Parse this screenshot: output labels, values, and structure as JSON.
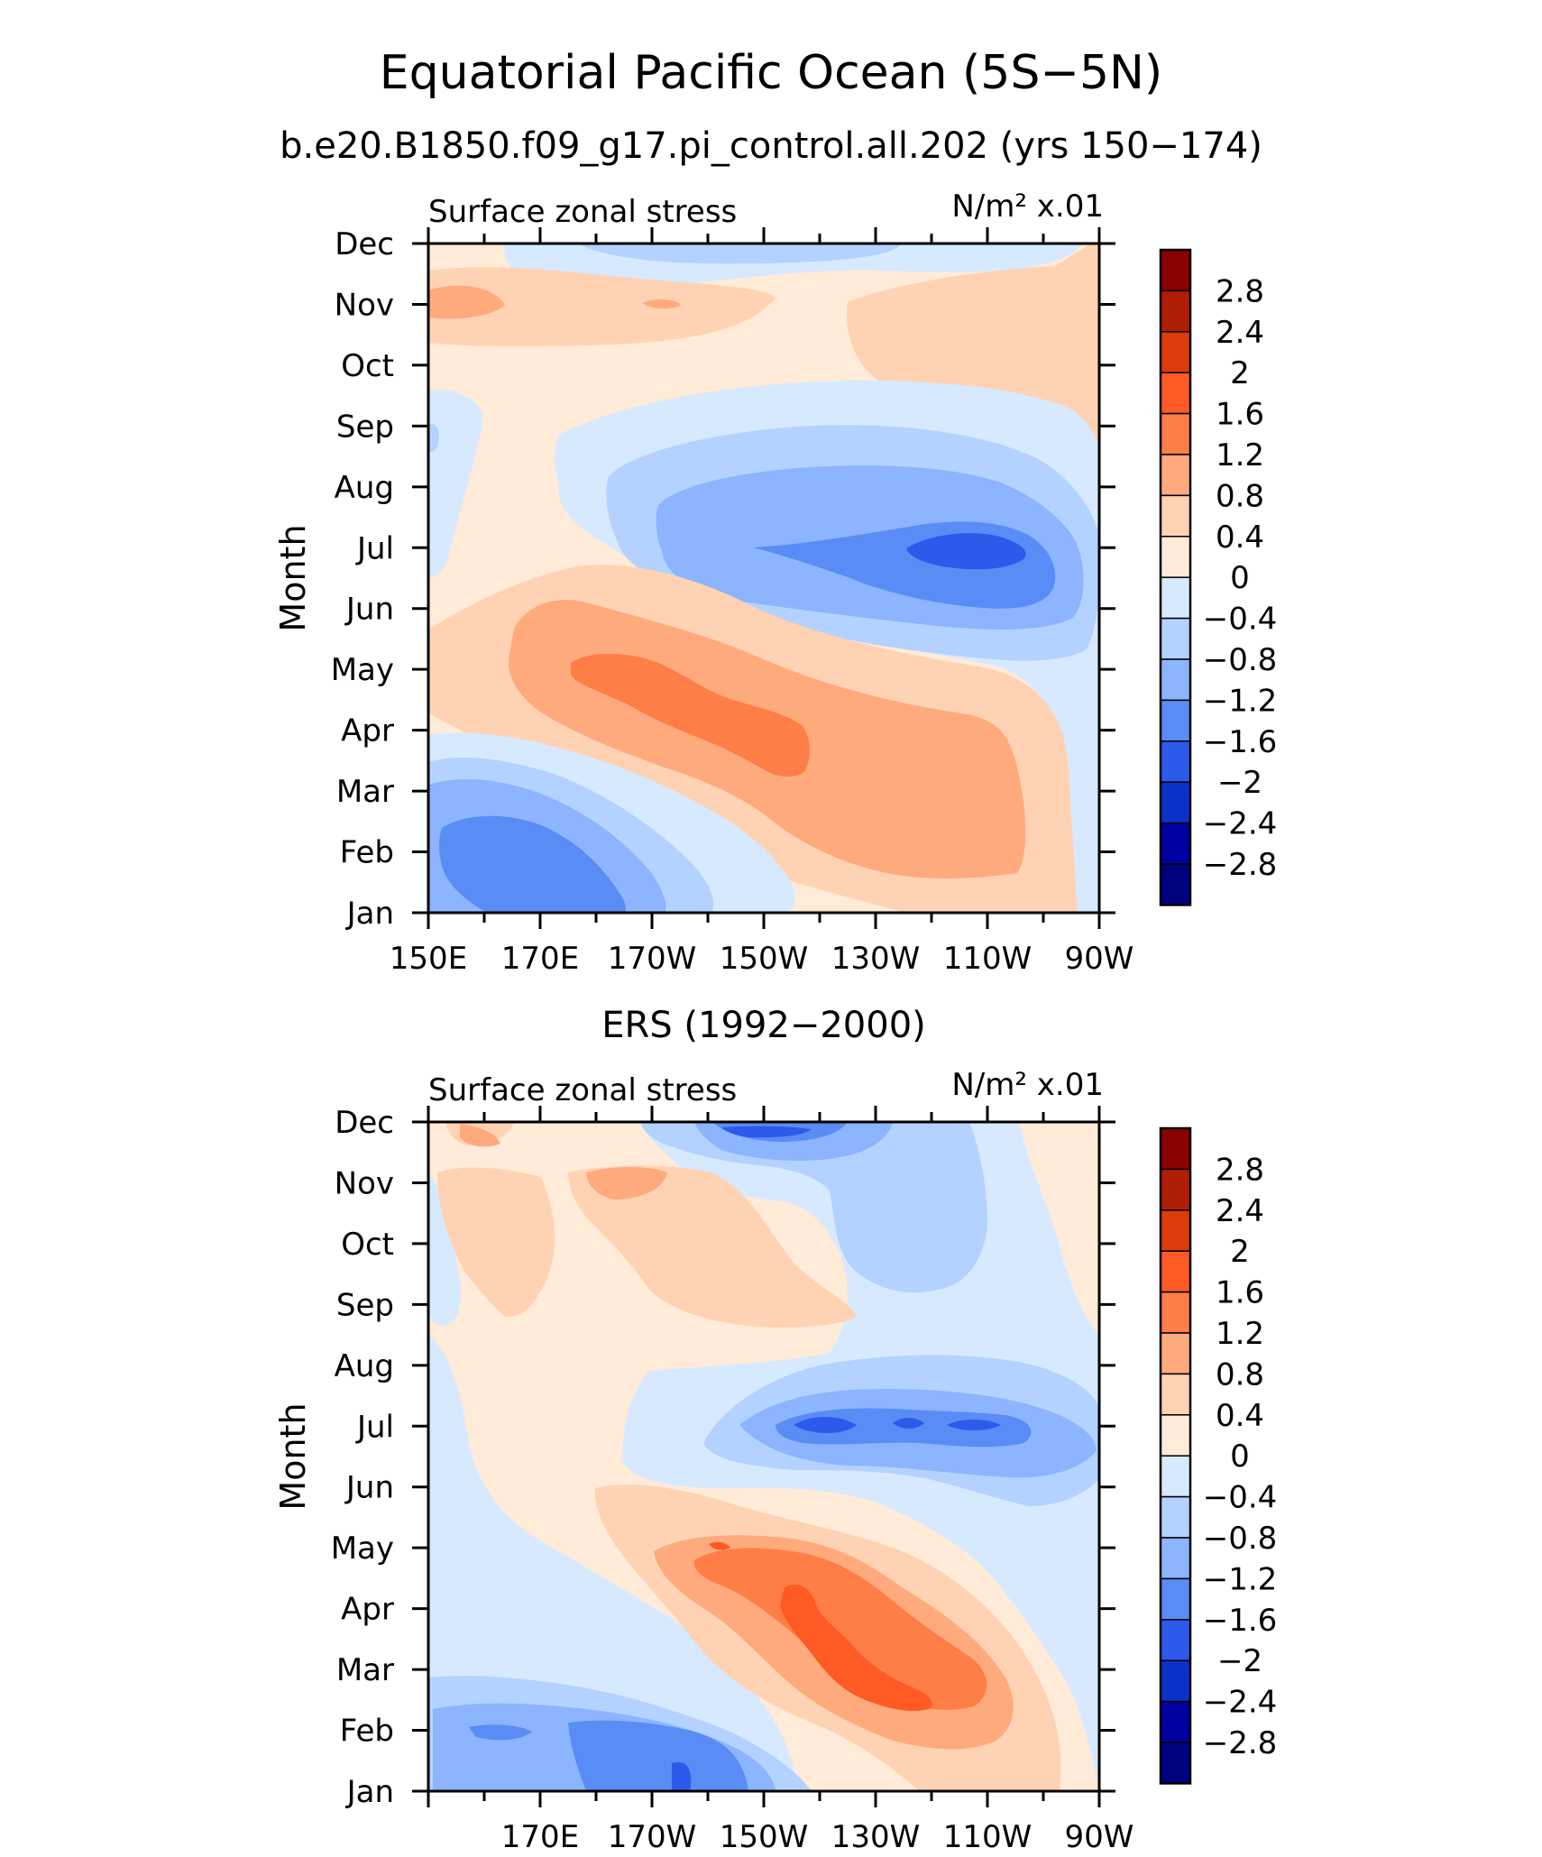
{
  "figure": {
    "title": "Equatorial Pacific Ocean (5S−5N)",
    "subtitle": "b.e20.B1850.f09_g17.pi_control.all.202 (yrs 150−174)",
    "second_title": "ERS (1992−2000)"
  },
  "colorbar": {
    "levels": [
      "2.8",
      "2.4",
      "2",
      "1.6",
      "1.2",
      "0.8",
      "0.4",
      "0",
      "−0.4",
      "−0.8",
      "−1.2",
      "−1.6",
      "−2",
      "−2.4",
      "−2.8"
    ],
    "colors": [
      "#8b0000",
      "#b01e05",
      "#dc3c0a",
      "#ff5a23",
      "#ff7d46",
      "#ffaa7d",
      "#ffd2b4",
      "#ffebd7",
      "#d7e9ff",
      "#b4d2ff",
      "#8cb4ff",
      "#5a8cf5",
      "#2d5aeb",
      "#0a32c8",
      "#0000a0",
      "#00007d"
    ]
  },
  "chart_data": [
    {
      "type": "heatmap",
      "panel": "model",
      "left_label": "Surface zonal stress",
      "right_label": "N/m² x.01",
      "ylabel": "Month",
      "xlabel": "",
      "y_ticks": [
        "Jan",
        "Feb",
        "Mar",
        "Apr",
        "May",
        "Jun",
        "Jul",
        "Aug",
        "Sep",
        "Oct",
        "Nov",
        "Dec"
      ],
      "x_ticks": [
        "150E",
        "170E",
        "170W",
        "150W",
        "130W",
        "110W",
        "90W"
      ],
      "x_range_deg_east": [
        150,
        270
      ],
      "y_range_month": [
        1,
        12
      ],
      "contour_levels": [
        -2.8,
        -2.4,
        -2,
        -1.6,
        -1.2,
        -0.8,
        -0.4,
        0,
        0.4,
        0.8,
        1.2,
        1.6,
        2,
        2.4,
        2.8
      ],
      "features": [
        {
          "name": "westerly anomaly Nov",
          "lon": 158,
          "month": 10.9,
          "value": 1.0
        },
        {
          "name": "easterly anomaly Jul",
          "lon": 250,
          "month": 7.0,
          "value": -2.2
        },
        {
          "name": "westerly anomaly Apr-May",
          "lon": 195,
          "month": 4.4,
          "value": 1.4
        },
        {
          "name": "easterly anomaly Feb",
          "lon": 162,
          "month": 1.8,
          "value": -1.7
        }
      ]
    },
    {
      "type": "heatmap",
      "panel": "ERS",
      "left_label": "Surface zonal stress",
      "right_label": "N/m² x.01",
      "ylabel": "Month",
      "xlabel": "",
      "y_ticks": [
        "Jan",
        "Feb",
        "Mar",
        "Apr",
        "May",
        "Jun",
        "Jul",
        "Aug",
        "Sep",
        "Oct",
        "Nov",
        "Dec"
      ],
      "x_ticks": [
        "170E",
        "170W",
        "150W",
        "130W",
        "110W",
        "90W"
      ],
      "x_range_deg_east": [
        150,
        270
      ],
      "y_range_month": [
        1,
        12
      ],
      "contour_levels": [
        -2.8,
        -2.4,
        -2,
        -1.6,
        -1.2,
        -0.8,
        -0.4,
        0,
        0.4,
        0.8,
        1.2,
        1.6,
        2,
        2.4,
        2.8
      ],
      "features": [
        {
          "name": "easterly anomaly Dec",
          "lon": 213,
          "month": 12.0,
          "value": -1.8
        },
        {
          "name": "westerly anomaly Mar-Apr",
          "lon": 230,
          "month": 3.5,
          "value": 1.7
        },
        {
          "name": "easterly anomaly Jul",
          "lon": 225,
          "month": 7.0,
          "value": -1.6
        },
        {
          "name": "easterly anomaly Jan-Feb",
          "lon": 185,
          "month": 1.6,
          "value": -1.7
        }
      ]
    }
  ]
}
